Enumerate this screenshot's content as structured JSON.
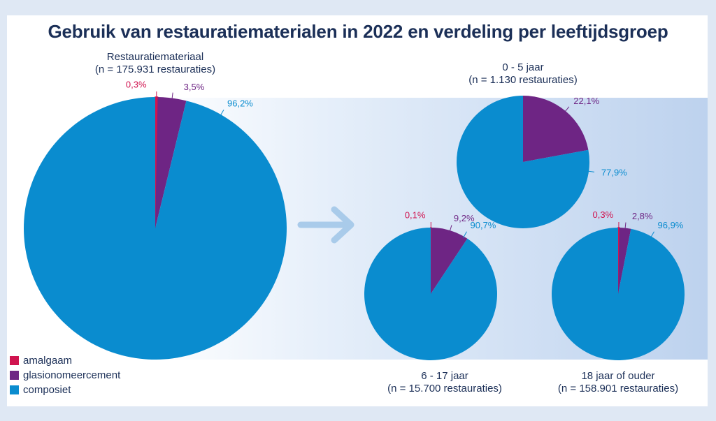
{
  "title": "Gebruik van restauratiematerialen in 2022 en verdeling per leeftijdsgroep",
  "colors": {
    "amalgaam": "#d0144f",
    "glasionomeercement": "#6e2584",
    "composiet": "#0a8ccf",
    "label_text": "#1b2f57",
    "arrow": "#a9cbea"
  },
  "legend": [
    {
      "name": "amalgaam",
      "color": "#d0144f"
    },
    {
      "name": "glasionomeercement",
      "color": "#6e2584"
    },
    {
      "name": "composiet",
      "color": "#0a8ccf"
    }
  ],
  "chart_data": [
    {
      "type": "pie",
      "title": "Restauratiemateriaal",
      "subtitle": "(n = 175.931 restauraties)",
      "slices": [
        {
          "name": "amalgaam",
          "value": 0.3,
          "label": "0,3%"
        },
        {
          "name": "glasionomeercement",
          "value": 3.5,
          "label": "3,5%"
        },
        {
          "name": "composiet",
          "value": 96.2,
          "label": "96,2%"
        }
      ]
    },
    {
      "type": "pie",
      "title": "0 - 5 jaar",
      "subtitle": "(n = 1.130 restauraties)",
      "slices": [
        {
          "name": "glasionomeercement",
          "value": 22.1,
          "label": "22,1%"
        },
        {
          "name": "composiet",
          "value": 77.9,
          "label": "77,9%"
        }
      ]
    },
    {
      "type": "pie",
      "title": "6 - 17 jaar",
      "subtitle": "(n = 15.700 restauraties)",
      "slices": [
        {
          "name": "amalgaam",
          "value": 0.1,
          "label": "0,1%"
        },
        {
          "name": "glasionomeercement",
          "value": 9.2,
          "label": "9,2%"
        },
        {
          "name": "composiet",
          "value": 90.7,
          "label": "90,7%"
        }
      ]
    },
    {
      "type": "pie",
      "title": "18 jaar of ouder",
      "subtitle": "(n = 158.901 restauraties)",
      "slices": [
        {
          "name": "amalgaam",
          "value": 0.3,
          "label": "0,3%"
        },
        {
          "name": "glasionomeercement",
          "value": 2.8,
          "label": "2,8%"
        },
        {
          "name": "composiet",
          "value": 96.9,
          "label": "96,9%"
        }
      ]
    }
  ]
}
